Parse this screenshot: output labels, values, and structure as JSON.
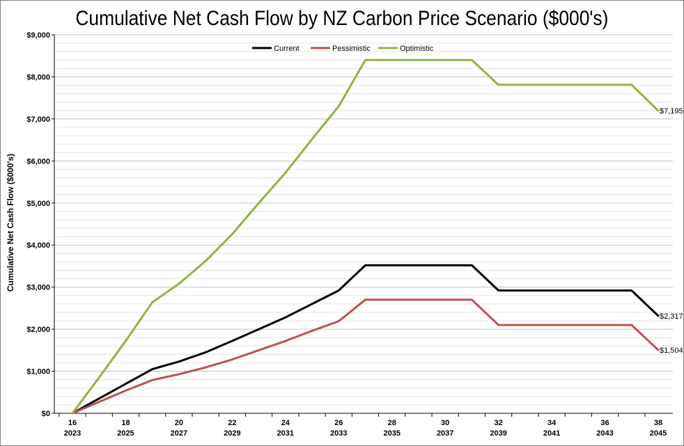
{
  "chart_data": {
    "type": "line",
    "title": "Cumulative Net Cash Flow by NZ Carbon Price Scenario ($000's)",
    "ylabel": "Cumulative Net Cash Flow ($000's)",
    "xlabel": "",
    "ylim": [
      0,
      9000
    ],
    "y_ticks": [
      "$0",
      "$1,000",
      "$2,000",
      "$3,000",
      "$4,000",
      "$5,000",
      "$6,000",
      "$7,000",
      "$8,000",
      "$9,000"
    ],
    "x": [
      16,
      17,
      18,
      19,
      20,
      21,
      22,
      23,
      24,
      25,
      26,
      27,
      28,
      29,
      30,
      31,
      32,
      33,
      34,
      35,
      36,
      37,
      38
    ],
    "x_tick_labels": [
      {
        "x": 16,
        "top": "16",
        "bottom": "2023"
      },
      {
        "x": 18,
        "top": "18",
        "bottom": "2025"
      },
      {
        "x": 20,
        "top": "20",
        "bottom": "2027"
      },
      {
        "x": 22,
        "top": "22",
        "bottom": "2029"
      },
      {
        "x": 24,
        "top": "24",
        "bottom": "2031"
      },
      {
        "x": 26,
        "top": "26",
        "bottom": "2033"
      },
      {
        "x": 28,
        "top": "28",
        "bottom": "2035"
      },
      {
        "x": 30,
        "top": "30",
        "bottom": "2037"
      },
      {
        "x": 32,
        "top": "32",
        "bottom": "2039"
      },
      {
        "x": 34,
        "top": "34",
        "bottom": "2041"
      },
      {
        "x": 36,
        "top": "36",
        "bottom": "2043"
      },
      {
        "x": 38,
        "top": "38",
        "bottom": "2045"
      }
    ],
    "series": [
      {
        "name": "Current",
        "color": "#000000",
        "values": [
          0,
          350,
          700,
          1050,
          1230,
          1450,
          1720,
          2000,
          2280,
          2600,
          2920,
          3520,
          3520,
          3520,
          3520,
          3520,
          2920,
          2920,
          2920,
          2920,
          2920,
          2920,
          2317
        ],
        "end_label": "$2,317"
      },
      {
        "name": "Pessimistic",
        "color": "#c0504d",
        "values": [
          0,
          270,
          540,
          790,
          930,
          1090,
          1280,
          1500,
          1720,
          1960,
          2190,
          2700,
          2700,
          2700,
          2700,
          2700,
          2100,
          2100,
          2100,
          2100,
          2100,
          2100,
          1504
        ],
        "end_label": "$1,504"
      },
      {
        "name": "Optimistic",
        "color": "#8db441",
        "values": [
          0,
          850,
          1720,
          2640,
          3080,
          3620,
          4260,
          5000,
          5720,
          6520,
          7300,
          8400,
          8400,
          8400,
          8400,
          8400,
          7810,
          7810,
          7810,
          7810,
          7810,
          7810,
          7195
        ],
        "end_label": "$7,195"
      }
    ],
    "grid": true,
    "legend_position": "top-center"
  }
}
